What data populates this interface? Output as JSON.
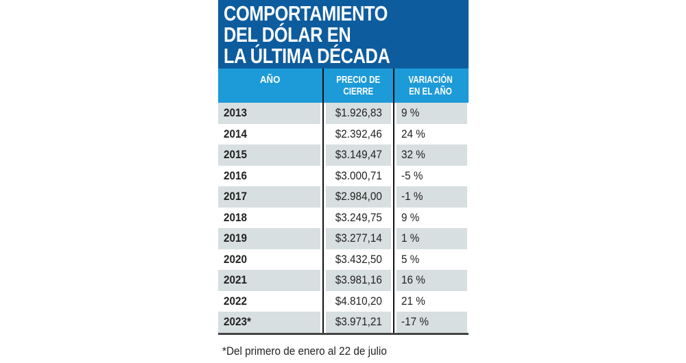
{
  "chart_data": {
    "type": "table",
    "title": [
      "COMPORTAMIENTO",
      "DEL DÓLAR EN",
      "LA ÚLTIMA DÉCADA"
    ],
    "columns": [
      "AÑO",
      "PRECIO DE CIERRE",
      "VARIACIÓN EN EL AÑO"
    ],
    "columns_lines": [
      [
        "AÑO"
      ],
      [
        "PRECIO DE",
        "CIERRE"
      ],
      [
        "VARIACIÓN",
        "EN EL AÑO"
      ]
    ],
    "rows": [
      [
        "2013",
        "$1.926,83",
        "9 %"
      ],
      [
        "2014",
        "$2.392,46",
        "24 %"
      ],
      [
        "2015",
        "$3.149,47",
        "32 %"
      ],
      [
        "2016",
        "$3.000,71",
        "-5 %"
      ],
      [
        "2017",
        "$2.984,00",
        "-1 %"
      ],
      [
        "2018",
        "$3.249,75",
        "9 %"
      ],
      [
        "2019",
        "$3.277,14",
        "1 %"
      ],
      [
        "2020",
        "$3.432,50",
        "5 %"
      ],
      [
        "2021",
        "$3.981,16",
        "16 %"
      ],
      [
        "2022",
        "$4.810,20",
        "21 %"
      ],
      [
        "2023*",
        "$3.971,21",
        "-17 %"
      ]
    ],
    "footnote": "*Del primero de enero al 22 de julio",
    "colors": {
      "title_bg": "#0d5c9e",
      "header_bg": "#1d9ad8",
      "stripe": "#d8dfe0"
    }
  }
}
